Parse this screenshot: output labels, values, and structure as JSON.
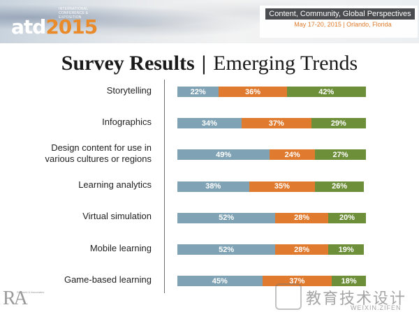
{
  "banner": {
    "small_text": "International Conference & Exposition",
    "logo_atd": "atd",
    "logo_year": "2015",
    "tagline": "Content, Community, Global Perspectives",
    "date_line": "May 17-20, 2015 | Orlando, Florida",
    "accent": "#e98b2a"
  },
  "slide": {
    "title_bold": "Survey Results",
    "title_sep": "|",
    "title_rest": "Emerging Trends"
  },
  "colors": {
    "blue": "#7fa3b5",
    "orange": "#e07a2e",
    "green": "#6e8f3a"
  },
  "chart_data": {
    "type": "bar",
    "orientation": "horizontal",
    "stacked": true,
    "categories": [
      "Storytelling",
      "Infographics",
      "Design content for use in various cultures or regions",
      "Learning analytics",
      "Virtual simulation",
      "Mobile learning",
      "Game-based learning"
    ],
    "category_lines": [
      [
        "Storytelling"
      ],
      [
        "Infographics"
      ],
      [
        "Design content for use in",
        "various cultures or regions"
      ],
      [
        "Learning analytics"
      ],
      [
        "Virtual simulation"
      ],
      [
        "Mobile learning"
      ],
      [
        "Game-based learning"
      ]
    ],
    "series": [
      {
        "color": "#7fa3b5",
        "values": [
          22,
          34,
          49,
          38,
          52,
          52,
          45
        ]
      },
      {
        "color": "#e07a2e",
        "values": [
          36,
          37,
          24,
          35,
          28,
          28,
          37
        ]
      },
      {
        "color": "#6e8f3a",
        "values": [
          42,
          29,
          27,
          26,
          20,
          19,
          18
        ]
      }
    ],
    "labels": [
      [
        "22%",
        "36%",
        "42%"
      ],
      [
        "34%",
        "37%",
        "29%"
      ],
      [
        "49%",
        "24%",
        "27%"
      ],
      [
        "38%",
        "35%",
        "26%"
      ],
      [
        "52%",
        "28%",
        "20%"
      ],
      [
        "52%",
        "28%",
        "19%"
      ],
      [
        "45%",
        "37%",
        "18%"
      ]
    ],
    "grid": false,
    "legend": "none"
  },
  "corner_logo": {
    "text": "RA",
    "caption": "Rothwell & Associates"
  },
  "watermark": {
    "text": "教育技术设计",
    "sub": "WEIXIN.ZIFEN"
  }
}
